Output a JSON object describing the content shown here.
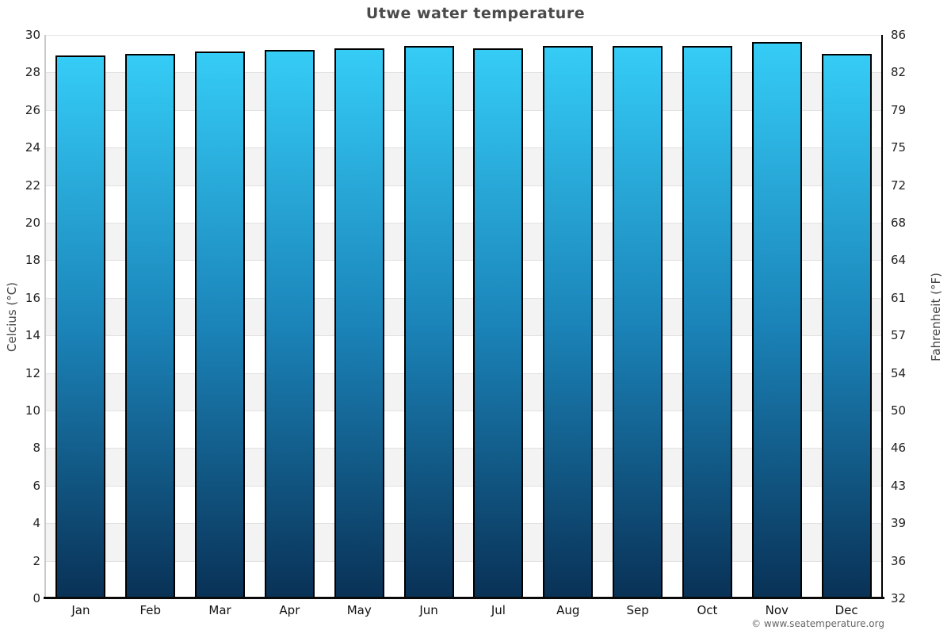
{
  "page": {
    "title": "Utwe water temperature",
    "footer": "© www.seatemperature.org"
  },
  "chart_data": {
    "type": "bar",
    "title": "Utwe water temperature",
    "categories": [
      "Jan",
      "Feb",
      "Mar",
      "Apr",
      "May",
      "Jun",
      "Jul",
      "Aug",
      "Sep",
      "Oct",
      "Nov",
      "Dec"
    ],
    "values": [
      28.9,
      29.0,
      29.1,
      29.2,
      29.3,
      29.4,
      29.3,
      29.4,
      29.4,
      29.4,
      29.6,
      29.0
    ],
    "unit": "°C",
    "xlabel": "",
    "ylabel_left": "Celcius (°C)",
    "ylabel_right": "Fahrenheit (°F)",
    "ylim_celsius": [
      0,
      30
    ],
    "yticks_celsius": [
      30,
      28,
      26,
      24,
      22,
      20,
      18,
      16,
      14,
      12,
      10,
      8,
      6,
      4,
      2,
      0
    ],
    "yticks_fahrenheit": [
      86,
      82,
      79,
      75,
      72,
      68,
      64,
      61,
      57,
      54,
      50,
      46,
      43,
      39,
      36,
      32
    ],
    "legend": "none",
    "grid": "horizontal stripes every 2°C, alternating white and light gray",
    "colors": {
      "bar_gradient_top": "#35ccf6",
      "bar_gradient_mid": "#1b84b9",
      "bar_gradient_bottom": "#093156",
      "bar_border": "#000000",
      "stripe_gray": "#f3f3f3",
      "stripe_white": "#ffffff",
      "gridline": "#e2e2e2",
      "axis_left_line": "#c9c9c9",
      "axis_right_line": "#000000",
      "axis_bottom_line": "#0a0a0a",
      "title_text": "#4a4a4a",
      "tick_text": "#222222",
      "footer_text": "#666666"
    }
  }
}
